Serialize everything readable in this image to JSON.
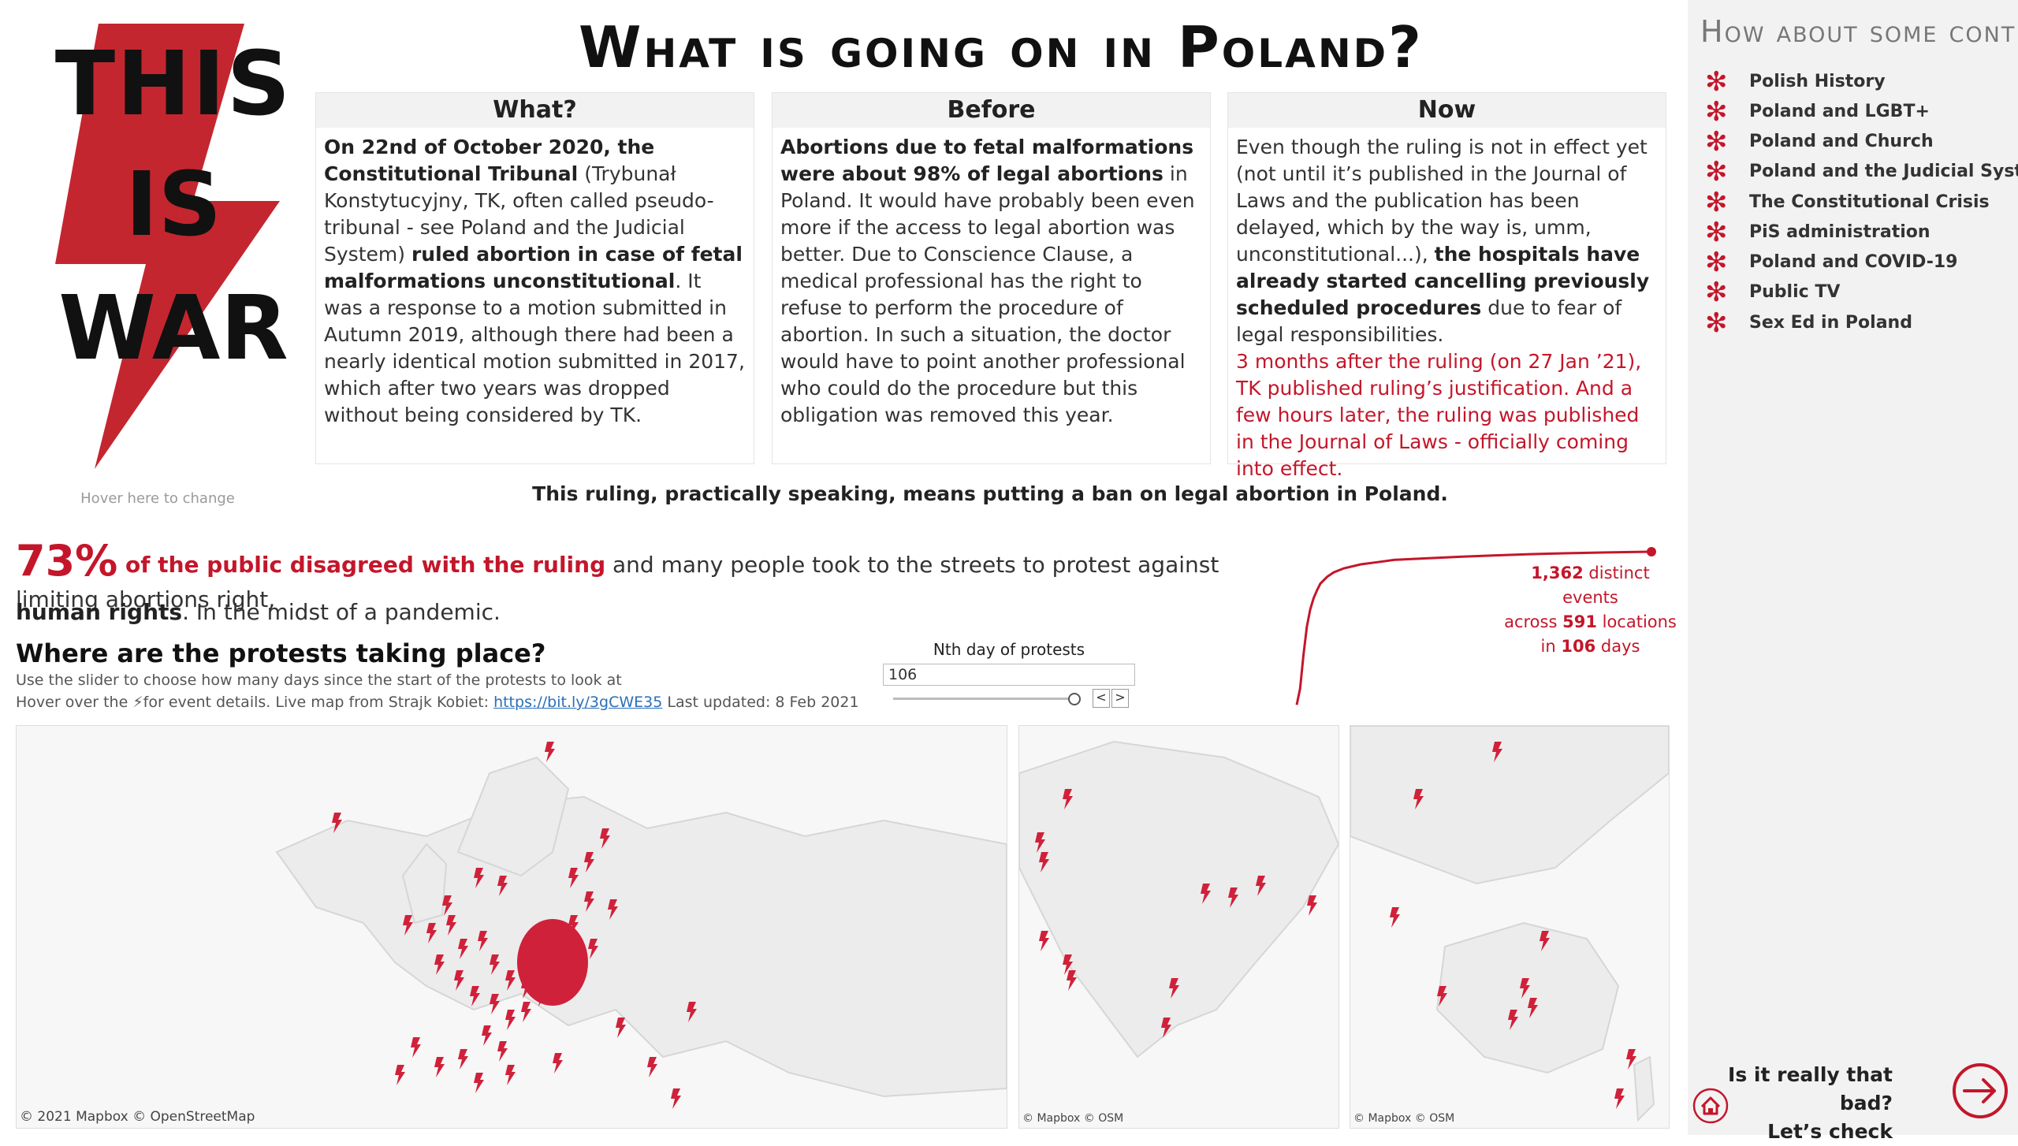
{
  "header": {
    "title": "What is going on in Poland?"
  },
  "logo": {
    "line1": "THIS",
    "line2": "IS",
    "line3": "WAR",
    "color": "#c4262f"
  },
  "hover_hint": "Hover here to change",
  "panels": {
    "what": {
      "title": "What?",
      "p1_bold": "On 22nd of October 2020, the Constitutional Tribunal",
      "p2": " (Trybunał Konstytucyjny, TK, often called pseudo-tribunal - see Poland and the Judicial System) ",
      "p3_bold": "ruled abortion in case of fetal malformations unconstitutional",
      "p4": ". It was a response to a motion submitted in Autumn 2019, although there had been a nearly identical motion submitted in 2017, which after two years was dropped without being considered by TK."
    },
    "before": {
      "title": "Before",
      "p1_bold": "Abortions due to fetal malformations were about 98% of legal abortions",
      "p2": " in Poland. It would have probably been even more if the access to legal abortion was better. Due to Conscience Clause, a medical professional has the right to refuse to perform the procedure of abortion. In such a situation, the doctor would have to point another professional who could do the procedure but this obligation was removed this year."
    },
    "now": {
      "title": "Now",
      "p1": "Even though the ruling is not in effect yet (not until it’s published in the Journal of Laws and the publication has been delayed, which by the way is, umm, unconstitutional...), ",
      "p2_bold": "the hospitals have already started cancelling previously scheduled procedures",
      "p3": " due to fear of legal responsibilities.",
      "p4_red": "3 months after the ruling (on 27 Jan ’21), TK published ruling’s justification. And a few hours later, the ruling was published in the Journal of Laws - officially coming into effect."
    }
  },
  "ban_line": "This ruling, practically speaking, means putting a ban on legal abortion in Poland.",
  "stats": {
    "pct": "73%",
    "pct_strong": " of the public disagreed with the ruling",
    "rest": " and many people took to the streets to protest against limiting abortions right,",
    "line2_bold": "human rights",
    "line2_rest": ". In the midst of a pandemic."
  },
  "where": {
    "title": "Where are the protests taking place?",
    "sub1": "Use the slider to choose how many days since the start of the protests to look at",
    "sub2_a": "Hover over the ⚡for event details. Live map from Strajk Kobiet: ",
    "link": "https://bit.ly/3gCWE35",
    "sub2_b": " Last updated: 8 Feb 2021"
  },
  "slider": {
    "label": "Nth day of protests",
    "value": "106",
    "fraction": 1.0,
    "prev": "<",
    "next": ">"
  },
  "events": {
    "count": "1,362",
    "count_rest": " distinct events",
    "across": "across ",
    "locations": "591",
    "locations_rest": " locations",
    "in": "in ",
    "days": "106",
    "days_rest": " days"
  },
  "chart_data": {
    "type": "line",
    "x": [
      1,
      2,
      3,
      4,
      5,
      6,
      7,
      8,
      10,
      12,
      15,
      20,
      25,
      30,
      40,
      50,
      60,
      70,
      80,
      90,
      100,
      106
    ],
    "y": [
      5,
      150,
      450,
      700,
      850,
      950,
      1020,
      1080,
      1140,
      1180,
      1215,
      1250,
      1270,
      1290,
      1305,
      1318,
      1330,
      1340,
      1348,
      1354,
      1359,
      1362
    ],
    "xlim": [
      1,
      106
    ],
    "ylim": [
      0,
      1362
    ],
    "color": "#c4162a"
  },
  "maps": {
    "europe_credit": "© 2021 Mapbox © OpenStreetMap",
    "america_credit": "© Mapbox © OSM",
    "asia_credit": "© Mapbox © OSM"
  },
  "sidebar": {
    "title": "How about some context?",
    "items": [
      "Polish History",
      "Poland and LGBT+",
      "Poland and Church",
      "Poland and the Judicial System",
      "The Constitutional Crisis",
      "PiS administration",
      "Poland and COVID-19",
      "Public TV",
      "Sex Ed in Poland"
    ],
    "star": "✻",
    "cta_line1": "Is it really that bad?",
    "cta_line2": "Let’s check"
  }
}
